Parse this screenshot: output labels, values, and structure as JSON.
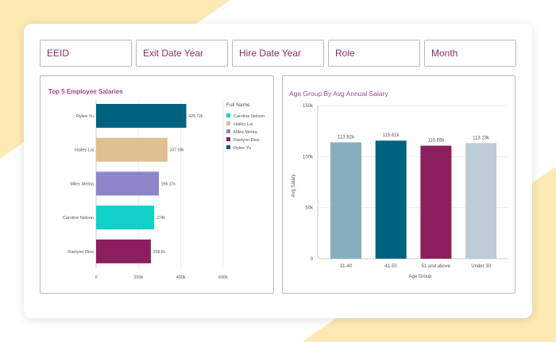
{
  "filters": [
    "EEID",
    "Exit Date Year",
    "Hire Date Year",
    "Role",
    "Month"
  ],
  "colors": {
    "accent": "#8b2d6e",
    "bg_shape": "#fde9b3"
  },
  "chart_data": [
    {
      "type": "bar",
      "orientation": "horizontal",
      "title": "Top 5 Employee Salaries",
      "categories": [
        "Rylee Yu",
        "Hailey Lai",
        "Miles Mehta",
        "Caroline Nelson",
        "Raelynn Rios"
      ],
      "values": [
        425720,
        337080,
        296370,
        274000,
        258500
      ],
      "labels": [
        "425.72k",
        "337.08k",
        "296.37k",
        "274k",
        "258.5k"
      ],
      "colors": [
        "#00627f",
        "#dfbf8f",
        "#8b86c8",
        "#12d1c8",
        "#8a1f5b"
      ],
      "xticks": [
        "0",
        "200k",
        "400k",
        "600k"
      ],
      "xlim": [
        0,
        600000
      ],
      "legend": {
        "title": "Full Name",
        "placement": "right",
        "entries": [
          {
            "name": "Caroline Nelson",
            "color": "#12d1c8"
          },
          {
            "name": "Hailey Lai",
            "color": "#dfbf8f"
          },
          {
            "name": "Miles Mehta",
            "color": "#8b86c8"
          },
          {
            "name": "Raelynn Rios",
            "color": "#8a1f5b"
          },
          {
            "name": "Rylee Yu",
            "color": "#00627f"
          }
        ]
      }
    },
    {
      "type": "bar",
      "title": "Age Group By Avg Annual Salary",
      "categories": [
        "31-40",
        "41-50",
        "51 and above",
        "Under 30"
      ],
      "values": [
        113920,
        115610,
        110690,
        113230
      ],
      "labels": [
        "113.92k",
        "115.61k",
        "110.69k",
        "113.23k"
      ],
      "colors": [
        "#86aebf",
        "#00627f",
        "#8a1f5b",
        "#bccbd6"
      ],
      "yticks": [
        "0",
        "50k",
        "100k",
        "150k"
      ],
      "ylim": [
        0,
        150000
      ],
      "xlabel": "Age Group",
      "ylabel": "Avg Salary",
      "grid": true
    }
  ]
}
